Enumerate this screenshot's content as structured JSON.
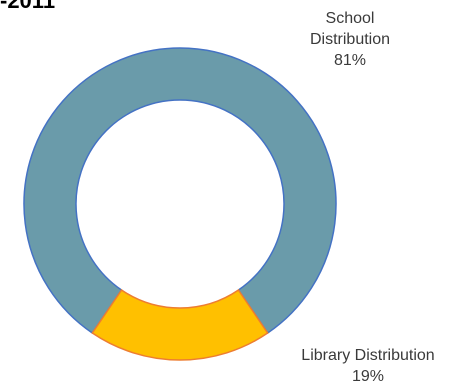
{
  "chart_data": {
    "type": "pie",
    "variant": "donut",
    "title": "-2011",
    "categories": [
      "School Distribution",
      "Library Distribution"
    ],
    "values": [
      81,
      19
    ],
    "value_labels": [
      "81%",
      "19%"
    ],
    "label_lines": [
      [
        "School",
        "Distribution",
        "81%"
      ],
      [
        "Library Distribution",
        "19%"
      ]
    ],
    "colors": [
      "#6A9BAA",
      "#FFC000"
    ],
    "edge_colors": [
      "#4472C4",
      "#ED7D31"
    ],
    "legend": "none"
  }
}
